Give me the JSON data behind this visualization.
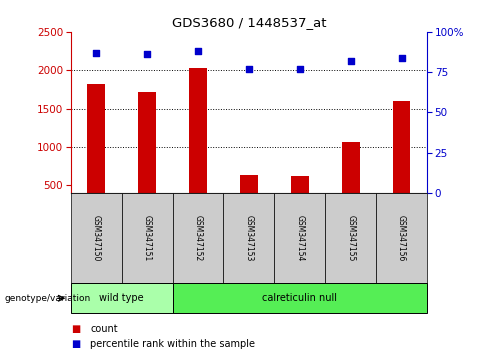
{
  "title": "GDS3680 / 1448537_at",
  "samples": [
    "GSM347150",
    "GSM347151",
    "GSM347152",
    "GSM347153",
    "GSM347154",
    "GSM347155",
    "GSM347156"
  ],
  "counts": [
    1820,
    1720,
    2030,
    640,
    620,
    1060,
    1600
  ],
  "percentile_ranks": [
    87,
    86,
    88,
    77,
    77,
    82,
    84
  ],
  "ylim_left": [
    400,
    2500
  ],
  "ylim_right": [
    0,
    100
  ],
  "yticks_left": [
    500,
    1000,
    1500,
    2000,
    2500
  ],
  "yticks_right": [
    0,
    25,
    50,
    75,
    100
  ],
  "right_ytick_labels": [
    "0",
    "25",
    "50",
    "75",
    "100%"
  ],
  "bar_color": "#cc0000",
  "dot_color": "#0000cc",
  "bar_bottom": 400,
  "genotype_groups": [
    {
      "label": "wild type",
      "start": 0,
      "end": 2,
      "color": "#aaffaa"
    },
    {
      "label": "calreticulin null",
      "start": 2,
      "end": 7,
      "color": "#55ee55"
    }
  ],
  "legend_count_label": "count",
  "legend_pct_label": "percentile rank within the sample",
  "genotype_label": "genotype/variation",
  "left_axis_color": "#cc0000",
  "right_axis_color": "#0000cc",
  "grid_lines_at": [
    1000,
    1500,
    2000
  ],
  "label_box_color": "#cccccc",
  "fig_width": 4.88,
  "fig_height": 3.54,
  "dpi": 100
}
